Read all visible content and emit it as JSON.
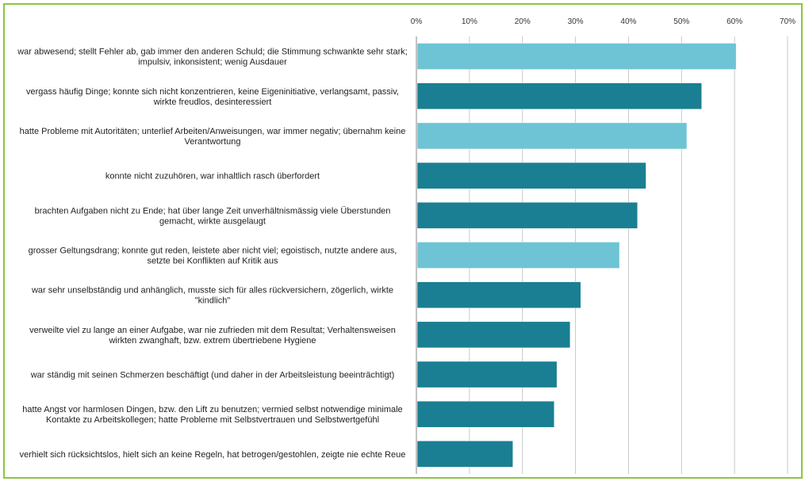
{
  "chart_data": {
    "type": "bar",
    "orientation": "horizontal",
    "title": "",
    "xlabel": "",
    "ylabel": "",
    "xlim": [
      0,
      70
    ],
    "x_ticks": [
      "0%",
      "10%",
      "20%",
      "30%",
      "40%",
      "50%",
      "60%",
      "70%"
    ],
    "grid": "vertical",
    "legend": "none",
    "colors": {
      "light": "#6ec4d4",
      "dark": "#1a7f92"
    },
    "categories": [
      "war abwesend; stellt Fehler ab, gab immer den anderen Schuld; die Stimmung schwankte sehr stark; impulsiv, inkonsistent; wenig Ausdauer",
      "vergass häufig Dinge; konnte sich nicht konzentrieren, keine Eigeninitiative, verlangsamt, passiv, wirkte freudlos, desinteressiert",
      "hatte Probleme mit Autoritäten; unterlief Arbeiten/Anweisungen, war immer negativ; übernahm keine Verantwortung",
      "konnte nicht zuzuhören, war inhaltlich rasch überfordert",
      "brachten Aufgaben nicht zu Ende; hat über lange Zeit unverhältnismässig viele Überstunden gemacht, wirkte ausgelaugt",
      "grosser Geltungsdrang; konnte gut reden, leistete aber nicht viel; egoistisch, nutzte andere aus, setzte bei Konflikten auf Kritik aus",
      "war sehr unselbständig und anhänglich, musste sich für alles rückversichern, zögerlich, wirkte \"kindlich\"",
      "verweilte viel zu lange an einer Aufgabe, war nie zufrieden mit dem Resultat; Verhaltensweisen wirkten zwanghaft, bzw. extrem übertriebene Hygiene",
      "war ständig mit seinen Schmerzen beschäftigt (und daher in der Arbeitsleistung beeinträchtigt)",
      "hatte Angst vor harmlosen Dingen, bzw. den Lift zu benutzen; vermied selbst notwendige minimale Kontakte zu Arbeitskollegen; hatte Probleme mit Selbstvertrauen und Selbstwertgefühl",
      "verhielt sich rücksichtslos, hielt sich an keine Regeln, hat betrogen/gestohlen, zeigte nie echte Reue"
    ],
    "values": [
      60.3,
      53.8,
      51.0,
      43.3,
      41.7,
      38.3,
      31.0,
      29.0,
      26.5,
      26.0,
      18.2
    ],
    "bar_colors": [
      "light",
      "dark",
      "light",
      "dark",
      "dark",
      "light",
      "dark",
      "dark",
      "dark",
      "dark",
      "dark"
    ]
  }
}
